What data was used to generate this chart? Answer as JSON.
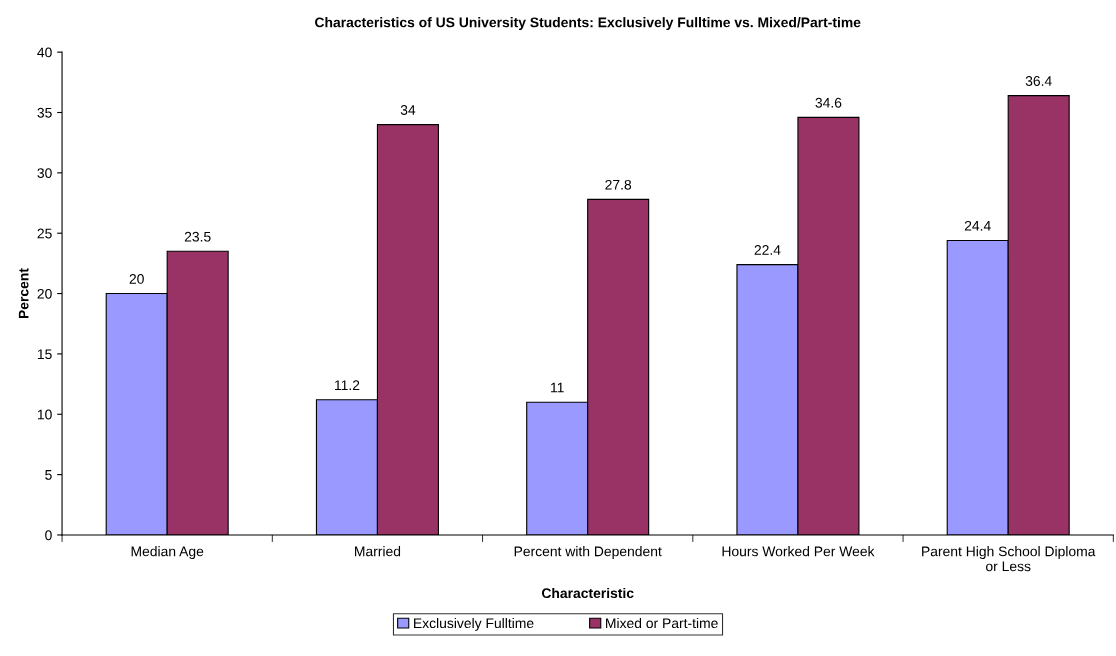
{
  "chart_data": {
    "type": "bar",
    "title": "Characteristics of US University Students: Exclusively Fulltime vs. Mixed/Part-time",
    "xlabel": "Characteristic",
    "ylabel": "Percent",
    "categories": [
      "Median Age",
      "Married",
      "Percent with Dependent",
      "Hours Worked Per Week",
      "Parent High School Diploma\nor Less"
    ],
    "series": [
      {
        "name": "Exclusively Fulltime",
        "color": "#9999ff",
        "values": [
          20,
          11.2,
          11,
          22.4,
          24.4
        ]
      },
      {
        "name": "Mixed or Part-time",
        "color": "#993366",
        "values": [
          23.5,
          34,
          27.8,
          34.6,
          36.4
        ]
      }
    ],
    "ylim": [
      0,
      40
    ],
    "yticks": [
      0,
      5,
      10,
      15,
      20,
      25,
      30,
      35,
      40
    ],
    "data_labels": true,
    "grid": false,
    "legend": "bottom"
  }
}
